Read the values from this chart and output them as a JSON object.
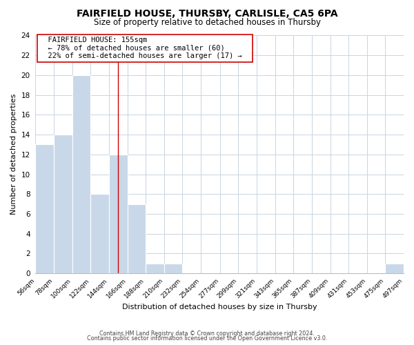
{
  "title": "FAIRFIELD HOUSE, THURSBY, CARLISLE, CA5 6PA",
  "subtitle": "Size of property relative to detached houses in Thursby",
  "xlabel": "Distribution of detached houses by size in Thursby",
  "ylabel": "Number of detached properties",
  "bin_edges": [
    56,
    78,
    100,
    122,
    144,
    166,
    188,
    210,
    232,
    254,
    277,
    299,
    321,
    343,
    365,
    387,
    409,
    431,
    453,
    475,
    497
  ],
  "bin_labels": [
    "56sqm",
    "78sqm",
    "100sqm",
    "122sqm",
    "144sqm",
    "166sqm",
    "188sqm",
    "210sqm",
    "232sqm",
    "254sqm",
    "277sqm",
    "299sqm",
    "321sqm",
    "343sqm",
    "365sqm",
    "387sqm",
    "409sqm",
    "431sqm",
    "453sqm",
    "475sqm",
    "497sqm"
  ],
  "counts": [
    13,
    14,
    20,
    8,
    12,
    7,
    1,
    1,
    0,
    0,
    0,
    0,
    0,
    0,
    0,
    0,
    0,
    0,
    0,
    1
  ],
  "bar_color": "#c8d8e8",
  "marker_line_color": "#cc0000",
  "marker_value": 155,
  "ylim": [
    0,
    24
  ],
  "yticks": [
    0,
    2,
    4,
    6,
    8,
    10,
    12,
    14,
    16,
    18,
    20,
    22,
    24
  ],
  "annotation_title": "FAIRFIELD HOUSE: 155sqm",
  "annotation_line1": "← 78% of detached houses are smaller (60)",
  "annotation_line2": "22% of semi-detached houses are larger (17) →",
  "annotation_box_color": "#ffffff",
  "annotation_box_edge": "#cc0000",
  "footer1": "Contains HM Land Registry data © Crown copyright and database right 2024.",
  "footer2": "Contains public sector information licensed under the Open Government Licence v3.0.",
  "background_color": "#ffffff",
  "grid_color": "#c8d4e0"
}
